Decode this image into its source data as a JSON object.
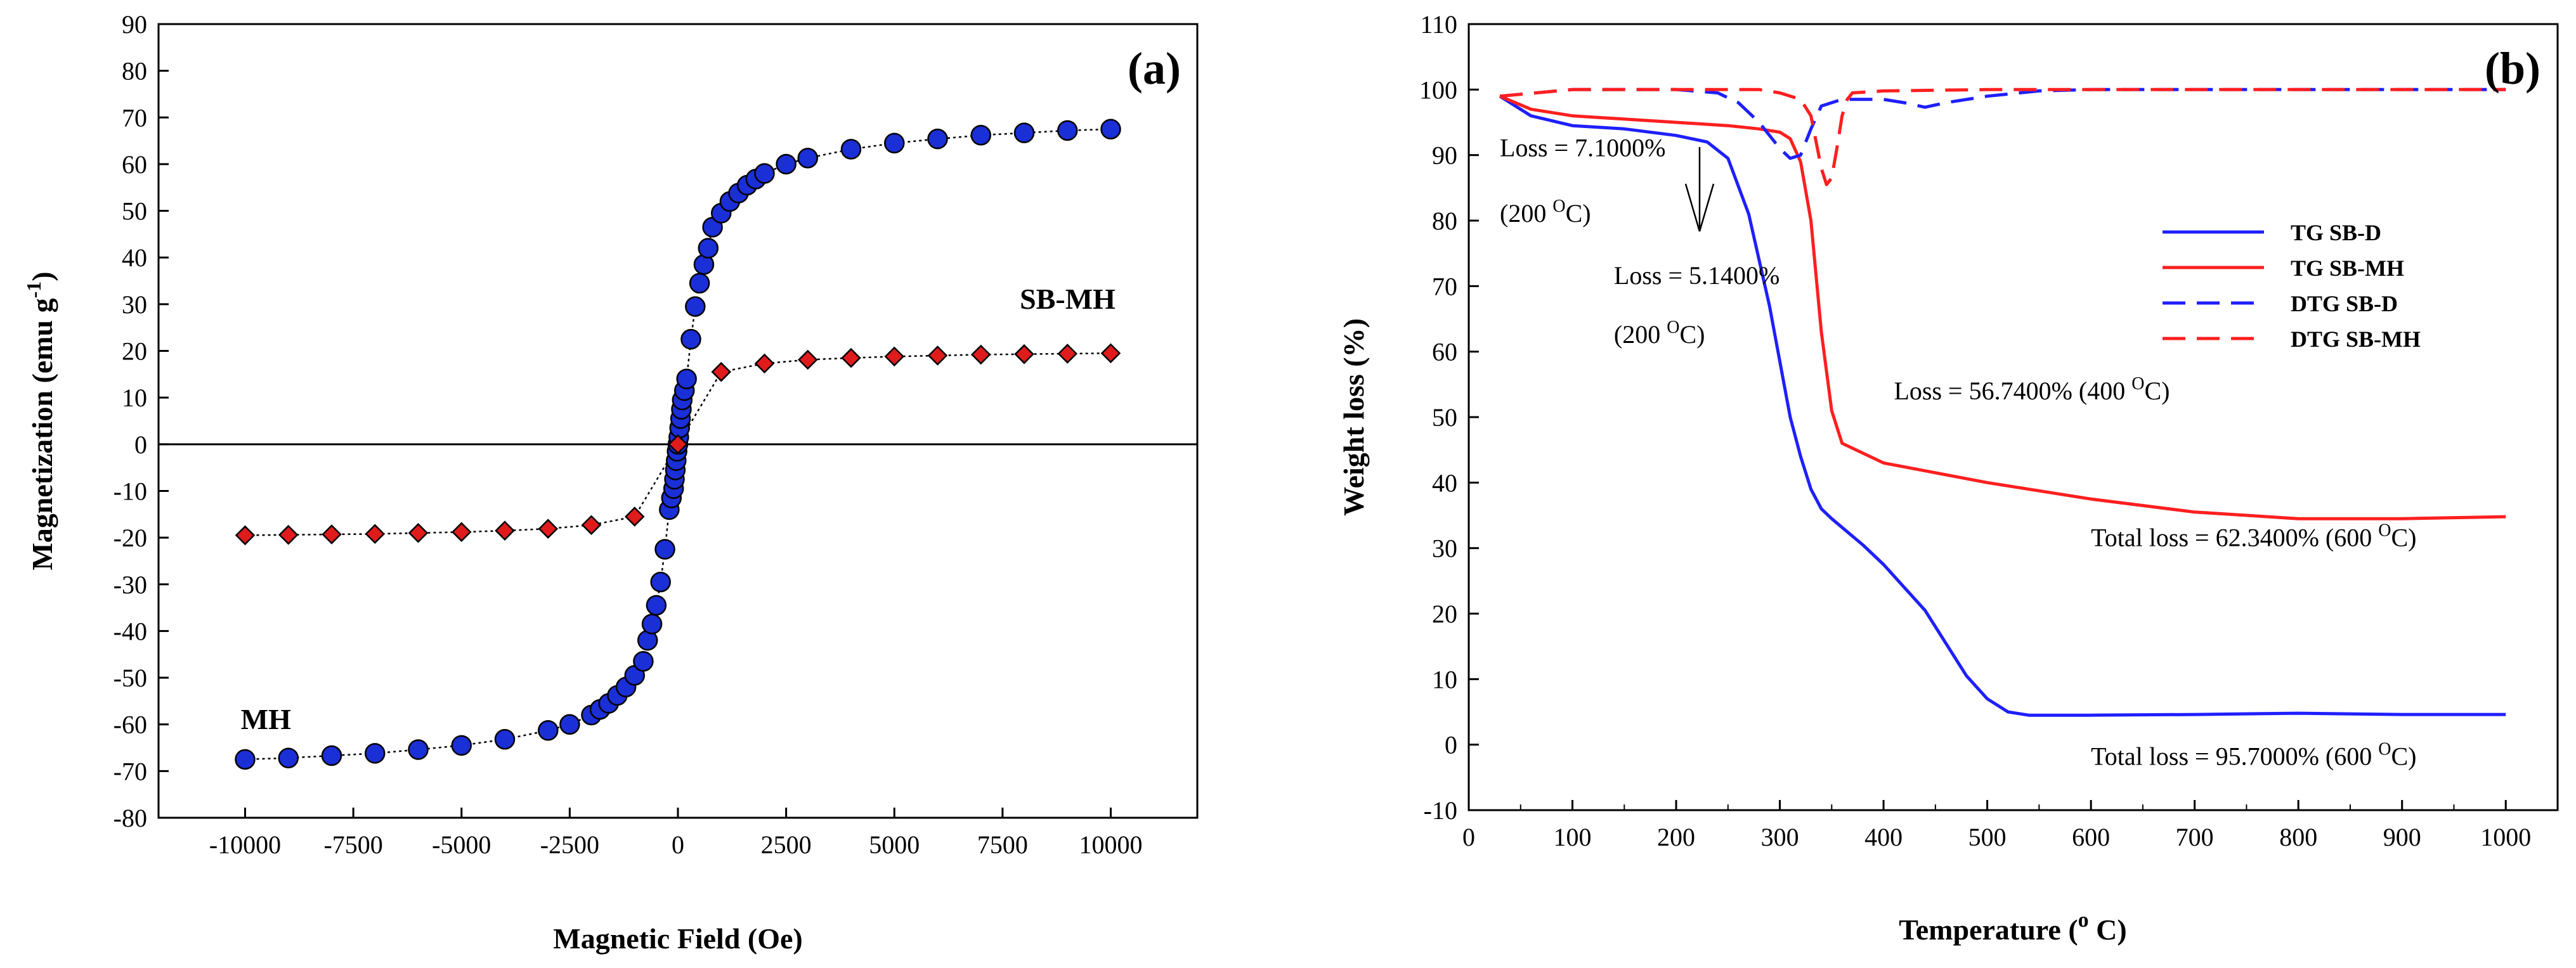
{
  "chart_data": [
    {
      "type": "scatter",
      "panel_label": "(a)",
      "title": "",
      "xlabel": "Magnetic Field (Oe)",
      "ylabel": "Magnetization (emu g",
      "ylabel_sup": "-1",
      "ylabel_close": ")",
      "xlim": [
        -12000,
        12000
      ],
      "ylim": [
        -80,
        90
      ],
      "xticks": [
        -10000,
        -7500,
        -5000,
        -2500,
        0,
        2500,
        5000,
        7500,
        10000
      ],
      "yticks": [
        -80,
        -70,
        -60,
        -50,
        -40,
        -30,
        -20,
        -10,
        0,
        10,
        20,
        30,
        40,
        50,
        60,
        70,
        80,
        90
      ],
      "zero_line": true,
      "annotations": [
        {
          "text": "MH",
          "x": -10100,
          "y": -61
        },
        {
          "text": "SB-MH",
          "x": 7900,
          "y": 29
        }
      ],
      "series": [
        {
          "name": "MH",
          "marker": "circle",
          "color": "#1a2fd6",
          "x": [
            -10000,
            -9000,
            -8000,
            -7000,
            -6000,
            -5000,
            -4000,
            -3000,
            -2500,
            -2000,
            -1800,
            -1600,
            -1400,
            -1200,
            -1000,
            -800,
            -700,
            -600,
            -500,
            -400,
            -300,
            -200,
            -150,
            -100,
            -80,
            -60,
            -40,
            -20,
            0,
            20,
            40,
            60,
            80,
            100,
            150,
            200,
            300,
            400,
            500,
            600,
            700,
            800,
            1000,
            1200,
            1400,
            1600,
            1800,
            2000,
            2500,
            3000,
            4000,
            5000,
            6000,
            7000,
            8000,
            9000,
            10000
          ],
          "y": [
            -67.5,
            -67.2,
            -66.7,
            -66.2,
            -65.4,
            -64.5,
            -63.2,
            -61.3,
            -60.0,
            -58.0,
            -56.8,
            -55.5,
            -53.8,
            -52.0,
            -49.5,
            -46.5,
            -42.0,
            -38.5,
            -34.5,
            -29.5,
            -22.5,
            -14.0,
            -11.5,
            -9.5,
            -7.5,
            -5.5,
            -3.5,
            -1.5,
            0.0,
            1.5,
            3.5,
            5.5,
            7.5,
            9.5,
            11.5,
            14.0,
            22.5,
            29.5,
            34.5,
            38.5,
            42.0,
            46.5,
            49.5,
            52.0,
            53.8,
            55.5,
            56.8,
            58.0,
            60.0,
            61.3,
            63.2,
            64.5,
            65.4,
            66.2,
            66.7,
            67.2,
            67.5
          ]
        },
        {
          "name": "SB-MH",
          "marker": "diamond",
          "color": "#e01b1b",
          "x": [
            -10000,
            -9000,
            -8000,
            -7000,
            -6000,
            -5000,
            -4000,
            -3000,
            -2000,
            -1000,
            0,
            1000,
            2000,
            3000,
            4000,
            5000,
            6000,
            7000,
            8000,
            9000,
            10000
          ],
          "y": [
            -19.5,
            -19.4,
            -19.3,
            -19.2,
            -19.0,
            -18.8,
            -18.5,
            -18.1,
            -17.3,
            -15.5,
            0.0,
            15.5,
            17.3,
            18.1,
            18.5,
            18.8,
            19.0,
            19.2,
            19.3,
            19.4,
            19.5
          ]
        }
      ]
    },
    {
      "type": "line",
      "panel_label": "(b)",
      "title": "",
      "xlabel": "Temperature (",
      "xlabel_sup": "o",
      "xlabel_close": " C)",
      "ylabel": "Weight loss  (%)",
      "xlim": [
        0,
        1050
      ],
      "ylim": [
        -10,
        110
      ],
      "xticks": [
        0,
        100,
        200,
        300,
        400,
        500,
        600,
        700,
        800,
        900,
        1000
      ],
      "yticks": [
        -10,
        0,
        10,
        20,
        30,
        40,
        50,
        60,
        70,
        80,
        90,
        100,
        110
      ],
      "legend_position": "right",
      "legend": [
        "TG SB-D",
        "TG SB-MH",
        "DTG SB-D",
        "DTG SB-MH"
      ],
      "series": [
        {
          "name": "TG SB-D",
          "style": "solid",
          "color": "#1f1fff",
          "x": [
            30,
            60,
            100,
            150,
            200,
            230,
            250,
            270,
            290,
            310,
            320,
            330,
            340,
            350,
            380,
            400,
            420,
            440,
            460,
            480,
            500,
            520,
            540,
            600,
            700,
            800,
            900,
            1000
          ],
          "y": [
            99,
            96,
            94.5,
            94,
            93,
            92,
            89.5,
            81,
            67,
            50,
            44,
            39,
            36,
            34.5,
            30.5,
            27.5,
            24,
            20.5,
            15.5,
            10.5,
            7,
            5,
            4.5,
            4.5,
            4.6,
            4.8,
            4.6,
            4.6
          ]
        },
        {
          "name": "TG SB-MH",
          "style": "solid",
          "color": "#ff1f1f",
          "x": [
            30,
            60,
            100,
            200,
            250,
            280,
            300,
            310,
            320,
            330,
            340,
            350,
            360,
            380,
            400,
            450,
            500,
            600,
            700,
            800,
            900,
            1000
          ],
          "y": [
            99,
            97,
            96,
            95,
            94.5,
            94,
            93.5,
            92.5,
            89,
            80,
            63,
            51,
            46,
            44.5,
            43,
            41.5,
            40,
            37.5,
            35.5,
            34.5,
            34.5,
            34.8
          ]
        },
        {
          "name": "DTG SB-D",
          "style": "dashed",
          "color": "#1f1fff",
          "x": [
            30,
            100,
            200,
            240,
            260,
            280,
            300,
            310,
            320,
            330,
            340,
            360,
            380,
            400,
            420,
            440,
            460,
            500,
            550,
            600,
            700,
            800,
            900,
            1000
          ],
          "y": [
            99,
            100,
            100,
            99.5,
            98,
            95,
            91,
            89.5,
            90,
            94,
            97.5,
            98.5,
            98.5,
            98.5,
            98,
            97.3,
            98,
            99,
            99.8,
            100,
            100,
            100,
            100,
            100
          ]
        },
        {
          "name": "DTG SB-MH",
          "style": "dashed",
          "color": "#ff1f1f",
          "x": [
            30,
            100,
            200,
            280,
            300,
            320,
            330,
            335,
            340,
            345,
            350,
            355,
            360,
            365,
            370,
            400,
            500,
            600,
            700,
            800,
            900,
            1000
          ],
          "y": [
            99,
            100,
            100,
            100,
            99.5,
            98.5,
            96,
            92,
            88,
            85.5,
            86.5,
            91,
            96,
            98.5,
            99.5,
            99.8,
            100,
            100,
            100,
            100,
            100,
            100
          ]
        }
      ],
      "annotations": [
        {
          "id": "ann1a",
          "text": "Loss = 7.1000%",
          "x": 30,
          "y": 89.8
        },
        {
          "id": "ann1b",
          "text": "(200 ",
          "sup": "O",
          "close": "C)",
          "x": 30,
          "y": 79.8
        },
        {
          "id": "ann2a",
          "text": "Loss = 5.1400%",
          "x": 140,
          "y": 70.3
        },
        {
          "id": "ann2b",
          "text": "(200 ",
          "sup": "O",
          "close": "C)",
          "x": 140,
          "y": 61.3
        },
        {
          "id": "ann3",
          "text": "Loss = 56.7400% (400 ",
          "sup": "O",
          "close": "C)",
          "x": 410,
          "y": 52.7
        },
        {
          "id": "ann4",
          "text": "Total loss = 62.3400% (600 ",
          "sup": "O",
          "close": "C)",
          "x": 600,
          "y": 30.3
        },
        {
          "id": "ann5",
          "text": "Total loss = 95.7000% (600 ",
          "sup": "O",
          "close": "C)",
          "x": 600,
          "y": -3.1
        }
      ]
    }
  ]
}
